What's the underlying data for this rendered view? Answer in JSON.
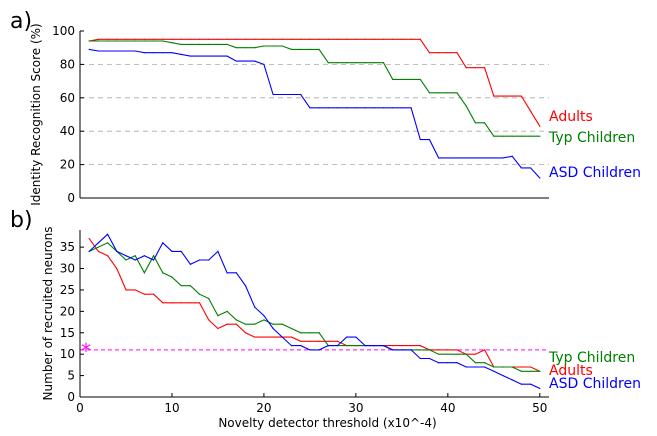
{
  "chart_data": [
    {
      "type": "line",
      "panel_label": "a)",
      "title": "",
      "xlabel": "",
      "ylabel": "Identity Recognition Score (%)",
      "xlim": [
        0,
        51
      ],
      "ylim": [
        0,
        100
      ],
      "yticks": [
        0,
        20,
        40,
        60,
        80,
        100
      ],
      "xticks": [],
      "grid": "horizontal dashed at 20, 40, 60, 80",
      "legend": "labels at right end of lines",
      "series": [
        {
          "name": "Adults",
          "color": "#ff0000",
          "x": [
            1,
            2,
            3,
            4,
            5,
            6,
            7,
            8,
            9,
            10,
            11,
            12,
            13,
            14,
            15,
            16,
            17,
            18,
            19,
            20,
            21,
            22,
            23,
            24,
            25,
            26,
            27,
            28,
            29,
            30,
            31,
            32,
            33,
            34,
            35,
            36,
            37,
            38,
            39,
            40,
            41,
            42,
            43,
            44,
            45,
            46,
            47,
            48,
            49,
            50
          ],
          "values": [
            94,
            95,
            95,
            95,
            95,
            95,
            95,
            95,
            95,
            95,
            95,
            95,
            95,
            95,
            95,
            95,
            95,
            95,
            95,
            95,
            95,
            95,
            95,
            95,
            95,
            95,
            95,
            95,
            95,
            95,
            95,
            95,
            95,
            95,
            95,
            95,
            95,
            87,
            87,
            87,
            87,
            78,
            78,
            78,
            61,
            61,
            61,
            61,
            52,
            43
          ]
        },
        {
          "name": "Typ Children",
          "color": "#008000",
          "x": [
            1,
            2,
            3,
            4,
            5,
            6,
            7,
            8,
            9,
            10,
            11,
            12,
            13,
            14,
            15,
            16,
            17,
            18,
            19,
            20,
            21,
            22,
            23,
            24,
            25,
            26,
            27,
            28,
            29,
            30,
            31,
            32,
            33,
            34,
            35,
            36,
            37,
            38,
            39,
            40,
            41,
            42,
            43,
            44,
            45,
            46,
            47,
            48,
            49,
            50
          ],
          "values": [
            94,
            94,
            94,
            94,
            94,
            94,
            94,
            94,
            94,
            93,
            92,
            92,
            92,
            92,
            92,
            92,
            90,
            90,
            90,
            91,
            91,
            91,
            89,
            89,
            89,
            89,
            81,
            81,
            81,
            81,
            81,
            81,
            81,
            71,
            71,
            71,
            71,
            63,
            63,
            63,
            63,
            55,
            45,
            45,
            37,
            37,
            37,
            37,
            37,
            37
          ]
        },
        {
          "name": "ASD Children",
          "color": "#0000ff",
          "x": [
            1,
            2,
            3,
            4,
            5,
            6,
            7,
            8,
            9,
            10,
            11,
            12,
            13,
            14,
            15,
            16,
            17,
            18,
            19,
            20,
            21,
            22,
            23,
            24,
            25,
            26,
            27,
            28,
            29,
            30,
            31,
            32,
            33,
            34,
            35,
            36,
            37,
            38,
            39,
            40,
            41,
            42,
            43,
            44,
            45,
            46,
            47,
            48,
            49,
            50
          ],
          "values": [
            89,
            88,
            88,
            88,
            88,
            88,
            87,
            87,
            87,
            87,
            86,
            85,
            85,
            85,
            85,
            85,
            82,
            82,
            82,
            80,
            62,
            62,
            62,
            62,
            54,
            54,
            54,
            54,
            54,
            54,
            54,
            54,
            54,
            54,
            54,
            54,
            35,
            35,
            24,
            24,
            24,
            24,
            24,
            24,
            24,
            24,
            25,
            18,
            18,
            12
          ]
        }
      ]
    },
    {
      "type": "line",
      "panel_label": "b)",
      "title": "",
      "xlabel": "Novelty detector threshold (x10^-4)",
      "ylabel": "Number of recruited neurons",
      "xlim": [
        0,
        51
      ],
      "ylim": [
        0,
        39
      ],
      "yticks": [
        0,
        5,
        10,
        15,
        20,
        25,
        30,
        35
      ],
      "xticks": [
        0,
        10,
        20,
        30,
        40,
        50
      ],
      "reference_line": {
        "y": 11,
        "color": "#ff00ff",
        "marker": "*"
      },
      "legend": "labels at right end of lines",
      "series": [
        {
          "name": "Adults",
          "color": "#ff0000",
          "x": [
            1,
            2,
            3,
            4,
            5,
            6,
            7,
            8,
            9,
            10,
            11,
            12,
            13,
            14,
            15,
            16,
            17,
            18,
            19,
            20,
            21,
            22,
            23,
            24,
            25,
            26,
            27,
            28,
            29,
            30,
            31,
            32,
            33,
            34,
            35,
            36,
            37,
            38,
            39,
            40,
            41,
            42,
            43,
            44,
            45,
            46,
            47,
            48,
            49,
            50
          ],
          "values": [
            37,
            34,
            33,
            30,
            25,
            25,
            24,
            24,
            22,
            22,
            22,
            22,
            22,
            18,
            16,
            17,
            17,
            15,
            14,
            14,
            14,
            14,
            14,
            13,
            13,
            13,
            13,
            13,
            12,
            12,
            12,
            12,
            12,
            12,
            12,
            12,
            12,
            11,
            11,
            11,
            11,
            10,
            10,
            11,
            7,
            7,
            7,
            7,
            7,
            6
          ]
        },
        {
          "name": "Typ Children",
          "color": "#008000",
          "x": [
            1,
            2,
            3,
            4,
            5,
            6,
            7,
            8,
            9,
            10,
            11,
            12,
            13,
            14,
            15,
            16,
            17,
            18,
            19,
            20,
            21,
            22,
            23,
            24,
            25,
            26,
            27,
            28,
            29,
            30,
            31,
            32,
            33,
            34,
            35,
            36,
            37,
            38,
            39,
            40,
            41,
            42,
            43,
            44,
            45,
            46,
            47,
            48,
            49,
            50
          ],
          "values": [
            34,
            35,
            36,
            34,
            32,
            33,
            29,
            33,
            29,
            28,
            26,
            26,
            24,
            23,
            19,
            20,
            18,
            17,
            17,
            18,
            17,
            17,
            16,
            15,
            15,
            15,
            12,
            12,
            12,
            12,
            12,
            12,
            12,
            11,
            11,
            11,
            11,
            11,
            10,
            10,
            10,
            10,
            8,
            8,
            7,
            7,
            7,
            6,
            6,
            6
          ]
        },
        {
          "name": "ASD Children",
          "color": "#0000ff",
          "x": [
            1,
            2,
            3,
            4,
            5,
            6,
            7,
            8,
            9,
            10,
            11,
            12,
            13,
            14,
            15,
            16,
            17,
            18,
            19,
            20,
            21,
            22,
            23,
            24,
            25,
            26,
            27,
            28,
            29,
            30,
            31,
            32,
            33,
            34,
            35,
            36,
            37,
            38,
            39,
            40,
            41,
            42,
            43,
            44,
            45,
            46,
            47,
            48,
            49,
            50
          ],
          "values": [
            34,
            36,
            38,
            34,
            33,
            32,
            33,
            32,
            36,
            34,
            34,
            31,
            32,
            32,
            34,
            29,
            29,
            26,
            21,
            19,
            16,
            14,
            12,
            12,
            11,
            11,
            12,
            12,
            14,
            14,
            12,
            12,
            12,
            11,
            11,
            11,
            9,
            9,
            8,
            8,
            8,
            7,
            7,
            7,
            6,
            5,
            4,
            3,
            3,
            2
          ]
        }
      ]
    }
  ]
}
